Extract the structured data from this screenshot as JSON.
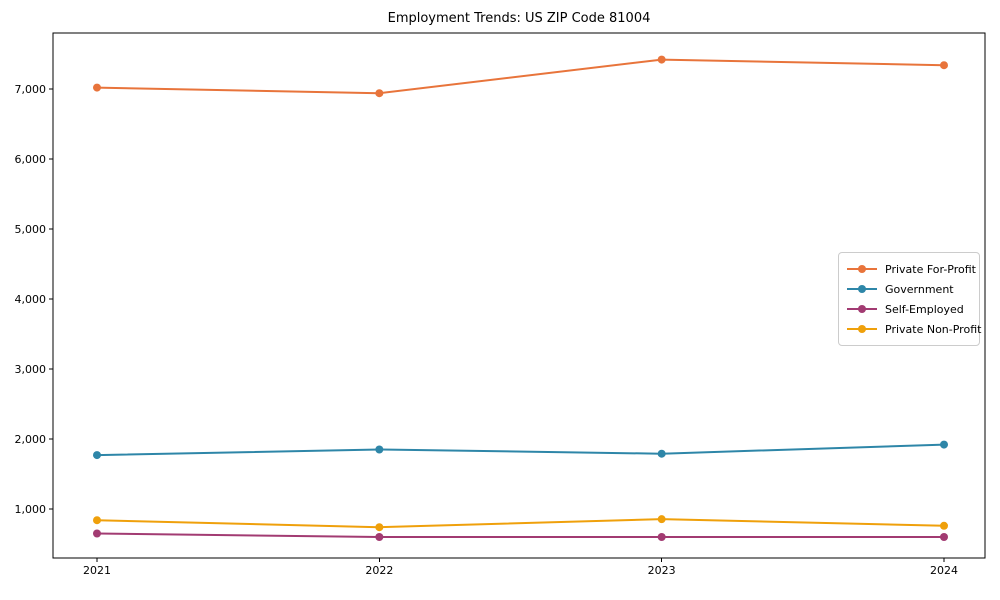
{
  "window": {
    "background": "#ffffff",
    "text_color": "#000000"
  },
  "chart_data": {
    "type": "line",
    "title": "Employment Trends: US ZIP Code 81004",
    "xlabel": "",
    "ylabel": "",
    "x": [
      2021,
      2022,
      2023,
      2024
    ],
    "x_tick_labels": [
      "2021",
      "2022",
      "2023",
      "2024"
    ],
    "yticks": [
      1000,
      2000,
      3000,
      4000,
      5000,
      6000,
      7000
    ],
    "ytick_labels": [
      "1,000",
      "2,000",
      "3,000",
      "4,000",
      "5,000",
      "6,000",
      "7,000"
    ],
    "ylim": [
      300,
      7800
    ],
    "grid": false,
    "legend_position": "center-right",
    "series": [
      {
        "name": "Private For-Profit",
        "color": "#E8743B",
        "values": [
          7020,
          6940,
          7420,
          7340
        ]
      },
      {
        "name": "Government",
        "color": "#2E86A8",
        "values": [
          1770,
          1850,
          1790,
          1920
        ]
      },
      {
        "name": "Self-Employed",
        "color": "#A23B72",
        "values": [
          650,
          600,
          600,
          600
        ]
      },
      {
        "name": "Private Non-Profit",
        "color": "#EFA00B",
        "values": [
          840,
          740,
          855,
          760
        ]
      }
    ]
  }
}
